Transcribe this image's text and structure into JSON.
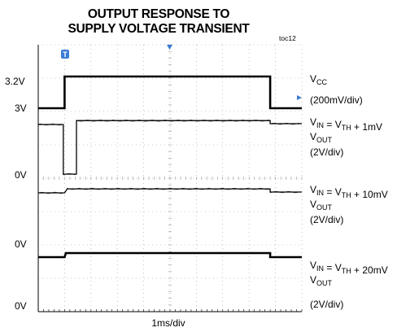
{
  "chart_data": {
    "type": "line",
    "title_line1": "OUTPUT RESPONSE TO",
    "title_line2": "SUPPLY VOLTAGE TRANSIENT",
    "figure_tag": "toc12",
    "xlabel": "1ms/div",
    "x_unit": "ms",
    "xlim": [
      0,
      10
    ],
    "x_divisions": 10,
    "y_divisions": 8,
    "grid": true,
    "left_labels": [
      "3.2V",
      "3V",
      "0V",
      "0V",
      "0V"
    ],
    "channels": [
      {
        "name": "VCC",
        "scale": "200mV/div",
        "style": "thick",
        "points": [
          [
            0,
            3.0
          ],
          [
            1.0,
            3.0
          ],
          [
            1.0,
            3.2
          ],
          [
            8.8,
            3.2
          ],
          [
            8.8,
            3.0
          ],
          [
            10,
            3.0
          ]
        ]
      },
      {
        "name": "VOUT (VIN = VTH + 1mV)",
        "scale": "2V/div",
        "style": "noisy",
        "points": [
          [
            0,
            3.2
          ],
          [
            0.95,
            3.2
          ],
          [
            0.95,
            0.0
          ],
          [
            1.45,
            0.0
          ],
          [
            1.45,
            3.45
          ],
          [
            8.8,
            3.45
          ],
          [
            8.8,
            3.25
          ],
          [
            10,
            3.25
          ]
        ]
      },
      {
        "name": "VOUT (VIN = VTH + 10mV)",
        "scale": "2V/div",
        "style": "noisy",
        "points": [
          [
            0,
            3.2
          ],
          [
            1.0,
            3.2
          ],
          [
            1.1,
            3.45
          ],
          [
            8.8,
            3.45
          ],
          [
            8.8,
            3.25
          ],
          [
            10,
            3.25
          ]
        ]
      },
      {
        "name": "VOUT (VIN = VTH + 20mV)",
        "scale": "2V/div",
        "style": "thick",
        "points": [
          [
            0,
            3.2
          ],
          [
            1.0,
            3.2
          ],
          [
            1.05,
            3.45
          ],
          [
            8.8,
            3.45
          ],
          [
            8.8,
            3.2
          ],
          [
            10,
            3.2
          ]
        ]
      }
    ],
    "right_labels": {
      "vcc": {
        "main": "V",
        "sub": "CC"
      },
      "vcc_scale": "(200mV/div)",
      "ch2_line1": [
        {
          "t": "V",
          "s": false
        },
        {
          "t": "IN",
          "s": true
        },
        {
          "t": " = V",
          "s": false
        },
        {
          "t": "TH",
          "s": true
        },
        {
          "t": " + 1mV",
          "s": false
        }
      ],
      "ch2_line2": [
        {
          "t": "V",
          "s": false
        },
        {
          "t": "OUT",
          "s": true
        }
      ],
      "ch2_scale": "(2V/div)",
      "ch3_line1": [
        {
          "t": "V",
          "s": false
        },
        {
          "t": "IN",
          "s": true
        },
        {
          "t": " = V",
          "s": false
        },
        {
          "t": "TH",
          "s": true
        },
        {
          "t": " + 10mV",
          "s": false
        }
      ],
      "ch3_line2": [
        {
          "t": "V",
          "s": false
        },
        {
          "t": "OUT",
          "s": true
        }
      ],
      "ch3_scale": "(2V/div)",
      "ch4_line1": [
        {
          "t": "V",
          "s": false
        },
        {
          "t": "IN",
          "s": true
        },
        {
          "t": " = V",
          "s": false
        },
        {
          "t": "TH",
          "s": true
        },
        {
          "t": " + 20mV",
          "s": false
        }
      ],
      "ch4_line2": [
        {
          "t": "V",
          "s": false
        },
        {
          "t": "OUT",
          "s": true
        }
      ],
      "ch4_scale": "(2V/div)"
    },
    "markers": {
      "trigger_top": "T",
      "trigger_color": "#3a7bd5"
    },
    "colors": {
      "trace": "#000000",
      "grid": "#9a9a9a",
      "marker": "#3a7bd5"
    }
  }
}
